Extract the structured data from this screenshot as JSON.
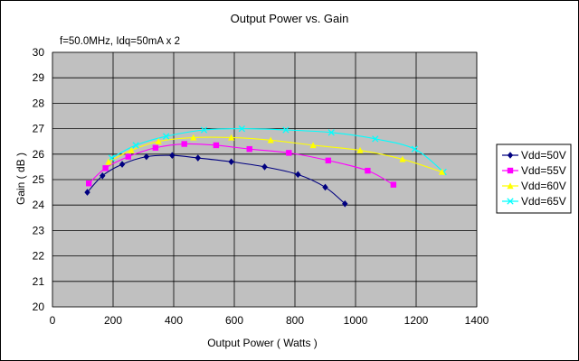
{
  "chart_data": {
    "type": "line",
    "title": "Output Power vs. Gain",
    "annotation": "f=50.0MHz, Idq=50mA x 2",
    "xlabel": "Output Power ( Watts )",
    "ylabel": "Gain ( dB )",
    "xlim": [
      0,
      1400
    ],
    "ylim": [
      20,
      30
    ],
    "xticks": [
      0,
      200,
      400,
      600,
      800,
      1000,
      1200,
      1400
    ],
    "yticks": [
      20,
      21,
      22,
      23,
      24,
      25,
      26,
      27,
      28,
      29,
      30
    ],
    "grid": true,
    "plot_background": "#c0c0c0",
    "legend_position": "right",
    "series": [
      {
        "name": "Vdd=50V",
        "color": "#000080",
        "marker": "diamond",
        "x": [
          115,
          165,
          230,
          310,
          395,
          480,
          590,
          700,
          810,
          900,
          965
        ],
        "y": [
          24.5,
          25.15,
          25.6,
          25.9,
          25.95,
          25.85,
          25.7,
          25.5,
          25.2,
          24.7,
          24.05
        ]
      },
      {
        "name": "Vdd=55V",
        "color": "#ff00ff",
        "marker": "square",
        "x": [
          120,
          175,
          250,
          340,
          435,
          540,
          650,
          780,
          910,
          1040,
          1125
        ],
        "y": [
          24.85,
          25.45,
          25.9,
          26.25,
          26.4,
          26.35,
          26.2,
          26.05,
          25.75,
          25.35,
          24.8
        ]
      },
      {
        "name": "Vdd=60V",
        "color": "#ffff00",
        "marker": "triangle",
        "x": [
          185,
          260,
          350,
          465,
          590,
          720,
          860,
          1015,
          1155,
          1285
        ],
        "y": [
          25.7,
          26.15,
          26.5,
          26.65,
          26.65,
          26.55,
          26.35,
          26.15,
          25.8,
          25.3
        ]
      },
      {
        "name": "Vdd=65V",
        "color": "#00ffff",
        "marker": "x",
        "x": [
          195,
          275,
          375,
          500,
          625,
          770,
          920,
          1065,
          1195,
          1290
        ],
        "y": [
          25.85,
          26.35,
          26.7,
          26.95,
          27.0,
          26.95,
          26.85,
          26.6,
          26.2,
          25.3
        ]
      }
    ]
  }
}
